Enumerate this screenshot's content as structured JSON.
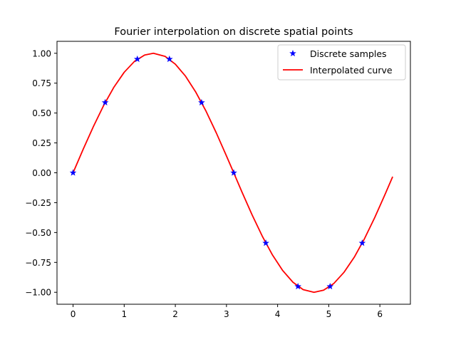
{
  "chart_data": {
    "type": "line",
    "title": "Fourier interpolation on discrete spatial points",
    "xlabel": "",
    "ylabel": "",
    "xlim": [
      -0.314,
      6.597
    ],
    "ylim": [
      -1.1,
      1.1
    ],
    "x_ticks": [
      0,
      1,
      2,
      3,
      4,
      5,
      6
    ],
    "x_tick_labels": [
      "0",
      "1",
      "2",
      "3",
      "4",
      "5",
      "6"
    ],
    "y_ticks": [
      1.0,
      0.75,
      0.5,
      0.25,
      0.0,
      -0.25,
      -0.5,
      -0.75,
      -1.0
    ],
    "y_tick_labels": [
      "1.00",
      "0.75",
      "0.50",
      "0.25",
      "0.00",
      "−0.25",
      "−0.50",
      "−0.75",
      "−1.00"
    ],
    "grid": false,
    "legend_position": "top-right",
    "series": [
      {
        "name": "Discrete samples",
        "style": "markers",
        "marker": "star",
        "color": "#0000ff",
        "x": [
          0.0,
          0.628,
          1.257,
          1.885,
          2.513,
          3.142,
          3.77,
          4.398,
          5.027,
          5.655
        ],
        "y": [
          0.0,
          0.588,
          0.951,
          0.951,
          0.588,
          0.0,
          -0.588,
          -0.951,
          -0.951,
          -0.588
        ]
      },
      {
        "name": "Interpolated curve",
        "style": "line",
        "color": "#ff0000",
        "x": [
          0.0,
          0.2,
          0.4,
          0.6,
          0.8,
          1.0,
          1.2,
          1.4,
          1.571,
          1.8,
          2.0,
          2.2,
          2.4,
          2.6,
          2.8,
          3.0,
          3.142,
          3.3,
          3.5,
          3.7,
          3.9,
          4.1,
          4.3,
          4.5,
          4.712,
          4.9,
          5.1,
          5.3,
          5.5,
          5.7,
          5.9,
          6.1,
          6.25
        ],
        "y": [
          0.0,
          0.199,
          0.389,
          0.565,
          0.717,
          0.841,
          0.932,
          0.985,
          1.0,
          0.974,
          0.909,
          0.808,
          0.675,
          0.516,
          0.335,
          0.141,
          0.0,
          -0.158,
          -0.351,
          -0.53,
          -0.688,
          -0.818,
          -0.916,
          -0.978,
          -1.0,
          -0.982,
          -0.926,
          -0.832,
          -0.706,
          -0.551,
          -0.374,
          -0.182,
          -0.033
        ]
      }
    ]
  }
}
